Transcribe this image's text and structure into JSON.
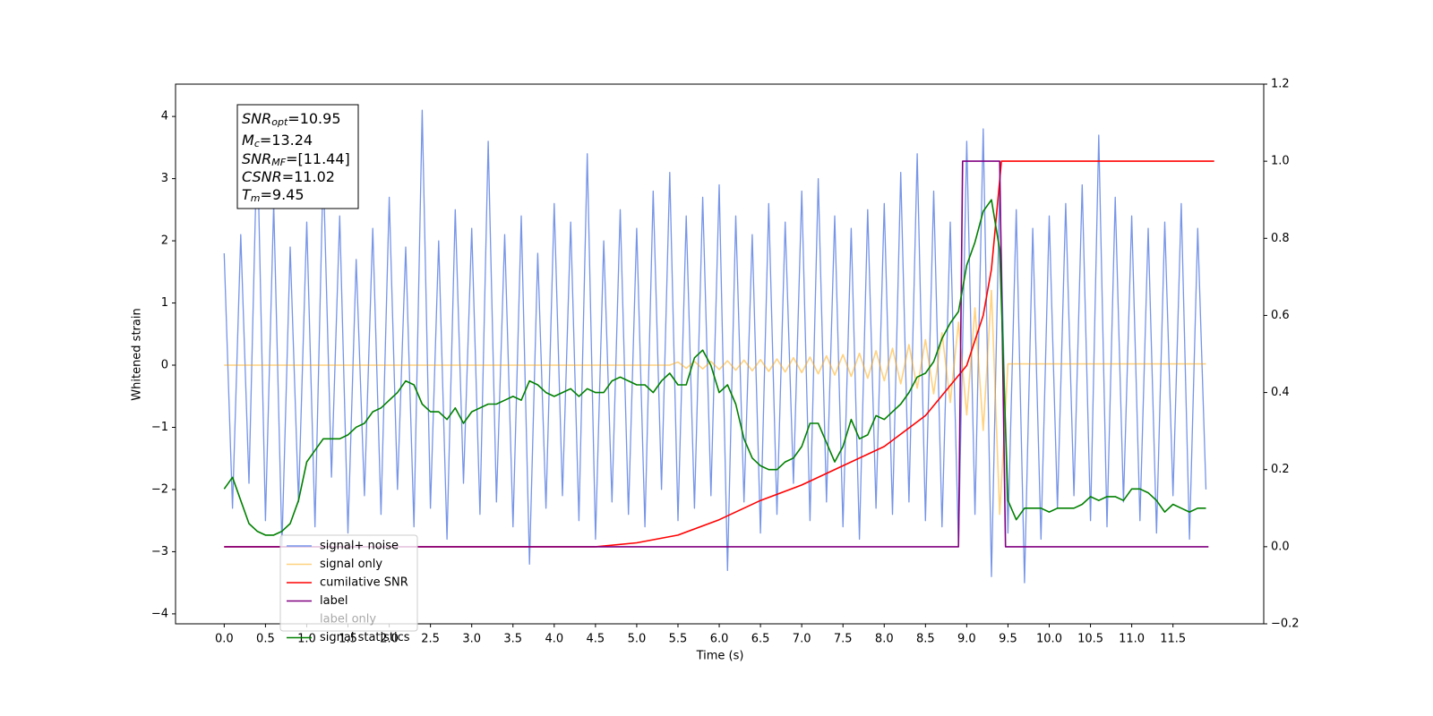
{
  "chart_data": {
    "type": "line",
    "xlabel": "Time (s)",
    "ylabel": "Whitened strain",
    "xlim": [
      -0.59,
      12.6
    ],
    "ylim": [
      -4.16,
      4.52
    ],
    "y2lim": [
      -0.2,
      1.2
    ],
    "xticks": [
      {
        "value": 0,
        "label": "0.0"
      },
      0.5,
      {
        "value": 1,
        "label": "1.0"
      },
      1.5,
      {
        "value": 2,
        "label": "2.0"
      },
      2.5,
      {
        "value": 3,
        "label": "3.0"
      },
      3.5,
      {
        "value": 4,
        "label": "4.0"
      },
      4.5,
      {
        "value": 5,
        "label": "5.0"
      },
      5.5,
      {
        "value": 6,
        "label": "6.0"
      },
      6.5,
      {
        "value": 7,
        "label": "7.0"
      },
      7.5,
      {
        "value": 8,
        "label": "8.0"
      },
      8.5,
      {
        "value": 9,
        "label": "9.0"
      },
      9.5,
      {
        "value": 10,
        "label": "10.0"
      },
      10.5,
      {
        "value": 11,
        "label": "11.0"
      },
      11.5
    ],
    "yticks": [
      {
        "value": -4,
        "label": "−4"
      },
      {
        "value": -3,
        "label": "−3"
      },
      {
        "value": -2,
        "label": "−2"
      },
      {
        "value": -1,
        "label": "−1"
      },
      0,
      1,
      2,
      3,
      4
    ],
    "y2ticks": [
      {
        "value": -0.2,
        "label": "−0.2"
      },
      {
        "value": 0,
        "label": "0.0"
      },
      0.2,
      0.4,
      0.6,
      0.8,
      {
        "value": 1,
        "label": "1.0"
      },
      1.2
    ],
    "legend": "lower left",
    "annotations": [
      {
        "base": "SNR",
        "sub": "opt",
        "rest": "=10.95"
      },
      {
        "base": "M",
        "sub": "c",
        "rest": "=13.24"
      },
      {
        "base": "SNR",
        "sub": "MF",
        "rest": "=[11.44]"
      },
      {
        "base": "CSNR",
        "rest": "=11.02"
      },
      {
        "base": "T",
        "sub": "m",
        "rest": "=9.45"
      }
    ],
    "x": [
      0,
      0.1,
      0.2,
      0.3,
      0.4,
      0.5,
      0.6,
      0.7,
      0.8,
      0.9,
      1,
      1.1,
      1.2,
      1.3,
      1.4,
      1.5,
      1.6,
      1.7,
      1.8,
      1.9,
      2,
      2.1,
      2.2,
      2.3,
      2.4,
      2.5,
      2.6,
      2.7,
      2.8,
      2.9,
      3,
      3.1,
      3.2,
      3.3,
      3.4,
      3.5,
      3.6,
      3.7,
      3.8,
      3.9,
      4,
      4.1,
      4.2,
      4.3,
      4.4,
      4.5,
      4.6,
      4.7,
      4.8,
      4.9,
      5,
      5.1,
      5.2,
      5.3,
      5.4,
      5.5,
      5.6,
      5.7,
      5.8,
      5.9,
      6,
      6.1,
      6.2,
      6.3,
      6.4,
      6.5,
      6.6,
      6.7,
      6.8,
      6.9,
      7,
      7.1,
      7.2,
      7.3,
      7.4,
      7.5,
      7.6,
      7.7,
      7.8,
      7.9,
      8,
      8.1,
      8.2,
      8.3,
      8.4,
      8.5,
      8.6,
      8.7,
      8.8,
      8.9,
      9,
      9.1,
      9.2,
      9.3,
      9.4,
      9.5,
      9.6,
      9.7,
      9.8,
      9.9,
      10,
      10.1,
      10.2,
      10.3,
      10.4,
      10.5,
      10.6,
      10.7,
      10.8,
      10.9,
      11,
      11.1,
      11.2,
      11.3,
      11.4,
      11.5,
      11.6,
      11.7,
      11.8,
      11.9
    ],
    "series": [
      {
        "name": "signal+ noise",
        "color": "#7694e8",
        "values": [
          1.8,
          -2.3,
          2.1,
          -1.9,
          3.7,
          -2.5,
          2.6,
          -2.9,
          1.9,
          -2.2,
          2.3,
          -2.6,
          3.2,
          -1.8,
          2.4,
          -2.7,
          1.7,
          -2.1,
          2.2,
          -2.4,
          2.7,
          -2.0,
          1.9,
          -2.6,
          4.1,
          -2.3,
          2.0,
          -2.8,
          2.5,
          -1.9,
          2.2,
          -2.4,
          3.6,
          -2.2,
          2.1,
          -2.6,
          2.4,
          -3.2,
          1.8,
          -2.3,
          2.6,
          -2.1,
          2.3,
          -2.5,
          3.4,
          -2.8,
          2.0,
          -2.2,
          2.5,
          -2.4,
          2.2,
          -2.6,
          2.8,
          -2.0,
          3.1,
          -2.5,
          2.4,
          -2.3,
          2.7,
          -2.1,
          2.9,
          -3.3,
          2.4,
          -2.2,
          2.1,
          -2.7,
          2.6,
          -2.4,
          2.3,
          -1.9,
          2.8,
          -2.5,
          3.0,
          -2.2,
          2.4,
          -2.6,
          2.2,
          -2.8,
          2.5,
          -2.3,
          2.6,
          -2.4,
          3.1,
          -2.2,
          3.4,
          -2.5,
          2.8,
          -2.6,
          2.3,
          -2.9,
          3.6,
          -2.4,
          3.8,
          -3.4,
          2.9,
          -2.7,
          2.5,
          -3.5,
          2.2,
          -2.8,
          2.4,
          -2.3,
          2.6,
          -2.1,
          2.9,
          -2.5,
          3.7,
          -2.6,
          2.7,
          -2.2,
          2.4,
          -2.5,
          2.2,
          -2.7,
          2.3,
          -2.1,
          2.6,
          -2.8,
          2.2,
          -2.0
        ]
      },
      {
        "name": "signal only",
        "color": "#ffa500",
        "values": [
          0,
          0,
          0,
          0,
          0,
          0,
          0,
          0,
          0,
          0,
          0,
          0,
          0,
          0,
          0,
          0,
          0,
          0,
          0,
          0,
          0,
          0,
          0,
          0,
          0,
          0,
          0,
          0,
          0,
          0,
          0,
          0,
          0,
          0,
          0,
          0,
          0,
          0,
          0,
          0,
          0,
          0,
          0,
          0,
          0,
          0,
          0,
          0,
          0,
          0,
          0,
          0,
          0,
          0,
          0,
          0.05,
          -0.05,
          0.06,
          -0.06,
          0.06,
          -0.07,
          0.07,
          -0.08,
          0.08,
          -0.09,
          0.09,
          -0.1,
          0.1,
          -0.11,
          0.12,
          -0.12,
          0.13,
          -0.14,
          0.15,
          -0.16,
          0.17,
          -0.18,
          0.19,
          -0.21,
          0.23,
          -0.25,
          0.27,
          -0.3,
          0.33,
          -0.37,
          0.41,
          -0.46,
          0.52,
          -0.6,
          0.69,
          -0.8,
          0.92,
          -1.05,
          1.2,
          -2.4,
          0.02,
          0.02,
          0.02,
          0.02,
          0.02,
          0.02,
          0.02,
          0.02,
          0.02,
          0.02,
          0.02,
          0.02,
          0.02,
          0.02,
          0.02,
          0.02,
          0.02,
          0.02,
          0.02,
          0.02,
          0.02,
          0.02,
          0.02,
          0.02,
          0.02
        ]
      },
      {
        "name": "cumilative SNR",
        "color": "#ff0000",
        "axis": "y2",
        "x": [
          0,
          4.5,
          5,
          5.5,
          6,
          6.5,
          7,
          7.5,
          8,
          8.5,
          9,
          9.2,
          9.3,
          9.4,
          9.42,
          12
        ],
        "values": [
          0,
          0,
          0.01,
          0.03,
          0.07,
          0.12,
          0.16,
          0.21,
          0.26,
          0.34,
          0.47,
          0.6,
          0.72,
          0.95,
          1,
          1
        ]
      },
      {
        "name": "label",
        "color": "#800080",
        "axis": "y2",
        "x": [
          0,
          8.9,
          8.95,
          9.4,
          9.47,
          11.93
        ],
        "values": [
          0,
          0,
          1,
          1,
          0,
          0
        ]
      },
      {
        "name": "label only",
        "x": [],
        "values": []
      },
      {
        "name": "signal statistics",
        "color": "#008000",
        "axis": "y2",
        "values": [
          0.15,
          0.18,
          0.12,
          0.06,
          0.04,
          0.03,
          0.03,
          0.04,
          0.06,
          0.12,
          0.22,
          0.25,
          0.28,
          0.28,
          0.28,
          0.29,
          0.31,
          0.32,
          0.35,
          0.36,
          0.38,
          0.4,
          0.43,
          0.42,
          0.37,
          0.35,
          0.35,
          0.33,
          0.36,
          0.32,
          0.35,
          0.36,
          0.37,
          0.37,
          0.38,
          0.39,
          0.38,
          0.43,
          0.42,
          0.4,
          0.39,
          0.4,
          0.41,
          0.39,
          0.41,
          0.4,
          0.4,
          0.43,
          0.44,
          0.43,
          0.42,
          0.42,
          0.4,
          0.43,
          0.45,
          0.42,
          0.42,
          0.49,
          0.51,
          0.47,
          0.4,
          0.42,
          0.37,
          0.28,
          0.23,
          0.21,
          0.2,
          0.2,
          0.22,
          0.23,
          0.26,
          0.32,
          0.32,
          0.27,
          0.22,
          0.26,
          0.33,
          0.28,
          0.29,
          0.34,
          0.33,
          0.35,
          0.37,
          0.4,
          0.44,
          0.45,
          0.48,
          0.54,
          0.58,
          0.61,
          0.73,
          0.79,
          0.87,
          0.9,
          0.77,
          0.12,
          0.07,
          0.1,
          0.1,
          0.1,
          0.09,
          0.1,
          0.1,
          0.1,
          0.11,
          0.13,
          0.12,
          0.13,
          0.13,
          0.12,
          0.15,
          0.15,
          0.14,
          0.12,
          0.09,
          0.11,
          0.1,
          0.09,
          0.1,
          0.1
        ]
      }
    ]
  }
}
